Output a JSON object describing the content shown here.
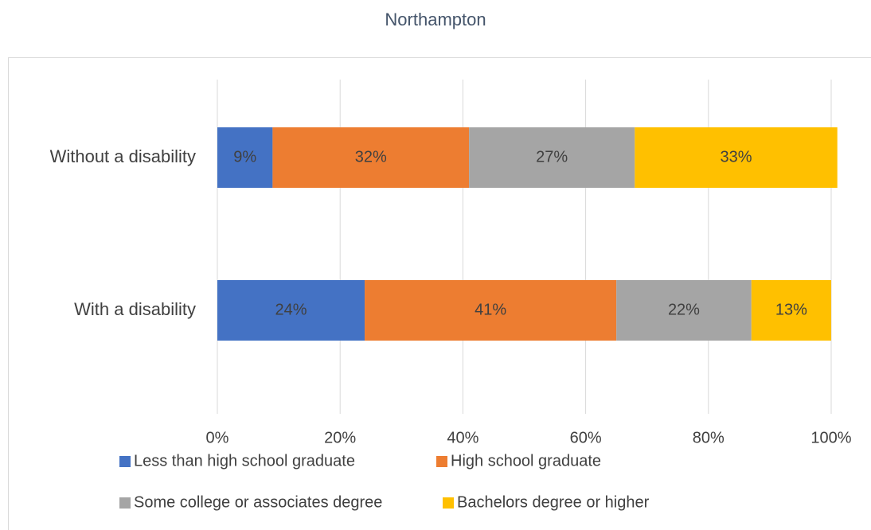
{
  "chart_data": {
    "type": "bar",
    "orientation": "horizontal",
    "stacked": true,
    "title": "Northampton",
    "categories": [
      "Without a disability",
      "With a disability"
    ],
    "series": [
      {
        "name": "Less than high school graduate",
        "color": "#4472c4",
        "values": [
          9,
          24
        ],
        "value_labels": [
          "9%",
          "24%"
        ]
      },
      {
        "name": "High school graduate",
        "color": "#ed7d31",
        "values": [
          32,
          41
        ],
        "value_labels": [
          "32%",
          "41%"
        ]
      },
      {
        "name": "Some college or associates degree",
        "color": "#a5a5a5",
        "values": [
          27,
          22
        ],
        "value_labels": [
          "27%",
          "22%"
        ]
      },
      {
        "name": "Bachelors degree or higher",
        "color": "#ffc000",
        "values": [
          33,
          13
        ],
        "value_labels": [
          "33%",
          "13%"
        ]
      }
    ],
    "xlim": [
      0,
      100
    ],
    "xticks": [
      {
        "value": 0,
        "label": "0%"
      },
      {
        "value": 20,
        "label": "20%"
      },
      {
        "value": 40,
        "label": "40%"
      },
      {
        "value": 60,
        "label": "60%"
      },
      {
        "value": 80,
        "label": "80%"
      },
      {
        "value": 100,
        "label": "100%"
      }
    ],
    "grid": true,
    "legend": "bottom"
  }
}
